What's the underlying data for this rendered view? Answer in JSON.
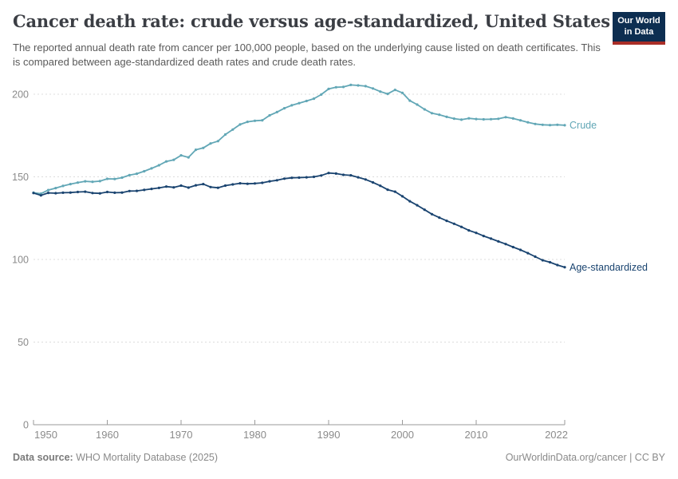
{
  "header": {
    "title": "Cancer death rate: crude versus age-standardized, United States",
    "subtitle": "The reported annual death rate from cancer per 100,000 people, based on the underlying cause listed on death certificates. This is compared between age-standardized death rates and crude death rates.",
    "logo": {
      "line1": "Our World",
      "line2": "in Data"
    }
  },
  "footer": {
    "source_label": "Data source:",
    "source_value": " WHO Mortality Database (2025)",
    "attribution": "OurWorldinData.org/cancer | CC BY"
  },
  "colors": {
    "crude_series": "#62a7b6",
    "age_standardized_series": "#1a4470",
    "gridline": "#dcdcdc",
    "axis": "#9a9a9a",
    "tick_label": "#8b8b8b",
    "title_text": "#3b3e44",
    "subtitle_text": "#5a5a5a",
    "logo_background": "#0d2e51",
    "logo_red_bar": "#a92e27",
    "footer_text": "#8a8a8a"
  },
  "chart_data": {
    "type": "line",
    "title": "Cancer death rate: crude versus age-standardized, United States",
    "xlabel": "",
    "ylabel": "",
    "ylim": [
      0,
      210
    ],
    "yticks": [
      0,
      50,
      100,
      150,
      200
    ],
    "xticks": [
      1950,
      1960,
      1970,
      1980,
      1990,
      2000,
      2010,
      2022
    ],
    "grid": "horizontal-dashed",
    "legend": "end-of-line-labels",
    "x": [
      1950,
      1951,
      1952,
      1953,
      1954,
      1955,
      1956,
      1957,
      1958,
      1959,
      1960,
      1961,
      1962,
      1963,
      1964,
      1965,
      1966,
      1967,
      1968,
      1969,
      1970,
      1971,
      1972,
      1973,
      1974,
      1975,
      1976,
      1977,
      1978,
      1979,
      1980,
      1981,
      1982,
      1983,
      1984,
      1985,
      1986,
      1987,
      1988,
      1989,
      1990,
      1991,
      1992,
      1993,
      1994,
      1995,
      1996,
      1997,
      1998,
      1999,
      2000,
      2001,
      2002,
      2003,
      2004,
      2005,
      2006,
      2007,
      2008,
      2009,
      2010,
      2011,
      2012,
      2013,
      2014,
      2015,
      2016,
      2017,
      2018,
      2019,
      2020,
      2021,
      2022
    ],
    "series": [
      {
        "name": "Crude",
        "color": "#62a7b6",
        "values": [
          140.4,
          139.8,
          142.0,
          143.2,
          144.5,
          145.6,
          146.5,
          147.3,
          147.0,
          147.4,
          148.8,
          148.7,
          149.5,
          151.0,
          151.9,
          153.4,
          155.1,
          157.0,
          159.3,
          160.3,
          163.0,
          161.8,
          166.4,
          167.5,
          170.2,
          171.6,
          175.6,
          178.6,
          181.7,
          183.3,
          183.9,
          184.2,
          187.2,
          189.2,
          191.5,
          193.3,
          194.6,
          195.9,
          197.3,
          199.8,
          203.2,
          204.2,
          204.4,
          205.6,
          205.3,
          204.9,
          203.5,
          201.6,
          200.2,
          202.6,
          200.8,
          196.1,
          193.7,
          190.8,
          188.5,
          187.6,
          186.3,
          185.2,
          184.6,
          185.4,
          185.0,
          184.8,
          184.9,
          185.1,
          186.1,
          185.3,
          184.2,
          183.0,
          182.0,
          181.5,
          181.3,
          181.5,
          181.2
        ]
      },
      {
        "name": "Age-standardized",
        "color": "#1a4470",
        "values": [
          140.2,
          138.8,
          140.3,
          140.1,
          140.4,
          140.5,
          140.8,
          141.0,
          140.2,
          140.0,
          140.8,
          140.4,
          140.5,
          141.4,
          141.5,
          142.1,
          142.7,
          143.3,
          144.1,
          143.6,
          144.7,
          143.5,
          144.9,
          145.6,
          143.8,
          143.4,
          144.7,
          145.4,
          146.1,
          145.8,
          146.0,
          146.4,
          147.3,
          147.9,
          148.9,
          149.4,
          149.5,
          149.7,
          150.0,
          150.8,
          152.3,
          152.0,
          151.2,
          150.9,
          149.7,
          148.4,
          146.6,
          144.6,
          142.2,
          141.0,
          138.2,
          135.2,
          132.8,
          130.1,
          127.4,
          125.3,
          123.4,
          121.6,
          119.7,
          117.6,
          116.1,
          114.2,
          112.6,
          110.9,
          109.3,
          107.5,
          105.8,
          103.8,
          101.7,
          99.5,
          98.3,
          96.6,
          95.3
        ]
      }
    ]
  }
}
